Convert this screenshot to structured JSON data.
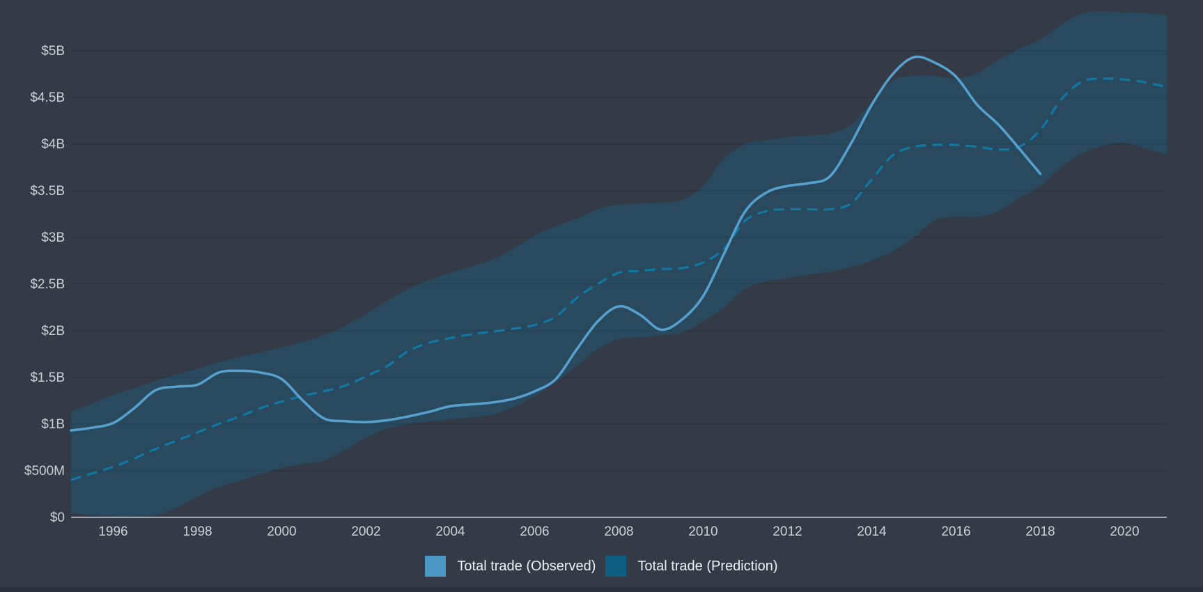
{
  "chart_data": {
    "type": "line",
    "title": "",
    "xlabel": "",
    "ylabel": "",
    "x_range": [
      1995,
      2021
    ],
    "y_range": [
      0,
      5.55
    ],
    "grid": "horizontal",
    "legend_position": "bottom",
    "x": [
      1995,
      1995.5,
      1996,
      1996.5,
      1997,
      1997.5,
      1998,
      1998.5,
      1999,
      1999.5,
      2000,
      2000.5,
      2001,
      2001.5,
      2002,
      2002.5,
      2003,
      2003.5,
      2004,
      2004.5,
      2005,
      2005.5,
      2006,
      2006.5,
      2007,
      2007.5,
      2008,
      2008.5,
      2009,
      2009.5,
      2010,
      2010.5,
      2011,
      2011.5,
      2012,
      2012.5,
      2013,
      2013.5,
      2014,
      2014.5,
      2015,
      2015.5,
      2016,
      2016.5,
      2017,
      2017.5,
      2018,
      2018.5,
      2019,
      2019.5,
      2020,
      2020.5,
      2021
    ],
    "series": [
      {
        "name": "Total trade (Observed)",
        "style": "solid",
        "unit": "billion USD",
        "values": [
          0.93,
          0.96,
          1.01,
          1.17,
          1.36,
          1.4,
          1.42,
          1.55,
          1.57,
          1.55,
          1.48,
          1.25,
          1.06,
          1.03,
          1.02,
          1.04,
          1.08,
          1.13,
          1.19,
          1.21,
          1.23,
          1.27,
          1.35,
          1.48,
          1.8,
          2.1,
          2.26,
          2.17,
          2.01,
          2.12,
          2.37,
          2.83,
          3.28,
          3.48,
          3.55,
          3.58,
          3.65,
          4.0,
          4.42,
          4.75,
          4.93,
          4.87,
          4.72,
          4.42,
          4.21,
          3.95,
          3.68,
          null,
          null,
          null,
          null,
          null,
          null
        ]
      },
      {
        "name": "Total trade (Prediction)",
        "style": "dashed",
        "unit": "billion USD",
        "values": [
          0.4,
          0.47,
          0.54,
          0.63,
          0.73,
          0.82,
          0.91,
          1.0,
          1.08,
          1.17,
          1.24,
          1.3,
          1.35,
          1.41,
          1.51,
          1.62,
          1.78,
          1.87,
          1.92,
          1.96,
          1.99,
          2.02,
          2.06,
          2.15,
          2.35,
          2.5,
          2.62,
          2.64,
          2.66,
          2.67,
          2.73,
          2.88,
          3.18,
          3.28,
          3.3,
          3.3,
          3.3,
          3.36,
          3.62,
          3.88,
          3.97,
          3.99,
          3.99,
          3.97,
          3.94,
          3.97,
          4.15,
          4.48,
          4.67,
          4.7,
          4.69,
          4.66,
          4.61
        ]
      }
    ],
    "band": {
      "name": "Prediction interval",
      "upper": [
        1.13,
        1.22,
        1.31,
        1.38,
        1.46,
        1.53,
        1.59,
        1.66,
        1.72,
        1.77,
        1.82,
        1.88,
        1.95,
        2.05,
        2.18,
        2.32,
        2.45,
        2.54,
        2.62,
        2.69,
        2.76,
        2.88,
        3.02,
        3.12,
        3.2,
        3.3,
        3.35,
        3.36,
        3.37,
        3.4,
        3.55,
        3.85,
        4.0,
        4.04,
        4.07,
        4.09,
        4.11,
        4.2,
        4.45,
        4.68,
        4.73,
        4.73,
        4.7,
        4.76,
        4.9,
        5.02,
        5.12,
        5.28,
        5.4,
        5.42,
        5.41,
        5.4,
        5.38
      ],
      "lower": [
        0.05,
        0.02,
        0.01,
        0.01,
        0.02,
        0.1,
        0.22,
        0.32,
        0.39,
        0.46,
        0.53,
        0.57,
        0.61,
        0.72,
        0.85,
        0.95,
        1.0,
        1.03,
        1.05,
        1.07,
        1.1,
        1.18,
        1.3,
        1.45,
        1.62,
        1.8,
        1.91,
        1.93,
        1.95,
        1.98,
        2.1,
        2.25,
        2.45,
        2.53,
        2.56,
        2.6,
        2.63,
        2.68,
        2.75,
        2.85,
        3.0,
        3.18,
        3.22,
        3.22,
        3.28,
        3.42,
        3.55,
        3.75,
        3.9,
        3.98,
        4.01,
        3.95,
        3.88
      ]
    },
    "y_ticks": [
      {
        "label": "$0",
        "value": 0
      },
      {
        "label": "$500M",
        "value": 0.5
      },
      {
        "label": "$1B",
        "value": 1
      },
      {
        "label": "$1.5B",
        "value": 1.5
      },
      {
        "label": "$2B",
        "value": 2
      },
      {
        "label": "$2.5B",
        "value": 2.5
      },
      {
        "label": "$3B",
        "value": 3
      },
      {
        "label": "$3.5B",
        "value": 3.5
      },
      {
        "label": "$4B",
        "value": 4
      },
      {
        "label": "$4.5B",
        "value": 4.5
      },
      {
        "label": "$5B",
        "value": 5
      }
    ],
    "x_ticks": [
      {
        "label": "1996",
        "value": 1996
      },
      {
        "label": "1998",
        "value": 1998
      },
      {
        "label": "2000",
        "value": 2000
      },
      {
        "label": "2002",
        "value": 2002
      },
      {
        "label": "2004",
        "value": 2004
      },
      {
        "label": "2006",
        "value": 2006
      },
      {
        "label": "2008",
        "value": 2008
      },
      {
        "label": "2010",
        "value": 2010
      },
      {
        "label": "2012",
        "value": 2012
      },
      {
        "label": "2014",
        "value": 2014
      },
      {
        "label": "2016",
        "value": 2016
      },
      {
        "label": "2018",
        "value": 2018
      },
      {
        "label": "2020",
        "value": 2020
      }
    ]
  },
  "legend": {
    "items": [
      {
        "label": "Total trade (Observed)",
        "color": "#4a98c3"
      },
      {
        "label": "Total trade (Prediction)",
        "color": "#0d5e81"
      }
    ]
  },
  "colors": {
    "background": "#343b46",
    "bottom_strip": "#2b313b",
    "gridline": "#2c323c",
    "axis_line": "#c6cbd1",
    "tick_text": "#ccd1d7",
    "observed_line": "#57a0ce",
    "prediction_line": "#1277a4",
    "band_fill": "rgba(20,96,133,0.38)",
    "legend_text": "#eef1f3"
  }
}
